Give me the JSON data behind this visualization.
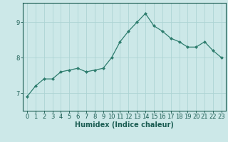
{
  "x": [
    0,
    1,
    2,
    3,
    4,
    5,
    6,
    7,
    8,
    9,
    10,
    11,
    12,
    13,
    14,
    15,
    16,
    17,
    18,
    19,
    20,
    21,
    22,
    23
  ],
  "y": [
    6.9,
    7.2,
    7.4,
    7.4,
    7.6,
    7.65,
    7.7,
    7.6,
    7.65,
    7.7,
    8.0,
    8.45,
    8.75,
    9.0,
    9.25,
    8.9,
    8.75,
    8.55,
    8.45,
    8.3,
    8.3,
    8.45,
    8.2,
    8.0
  ],
  "line_color": "#2e7d6e",
  "marker_color": "#2e7d6e",
  "bg_color": "#cce8e8",
  "grid_color": "#add4d4",
  "axis_color": "#1a5c52",
  "xlabel": "Humidex (Indice chaleur)",
  "xlabel_fontsize": 7,
  "tick_fontsize": 6,
  "yticks": [
    7,
    8,
    9
  ],
  "ylim": [
    6.5,
    9.55
  ],
  "xlim": [
    -0.5,
    23.5
  ]
}
